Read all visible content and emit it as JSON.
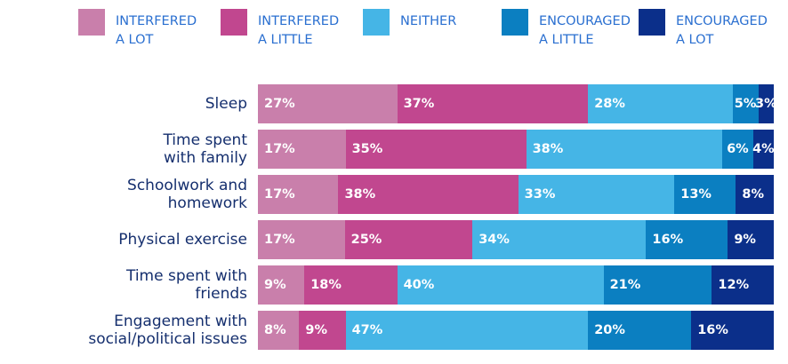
{
  "chart_data": {
    "type": "stacked-bar-horizontal",
    "categories": [
      "Sleep",
      "Time spent\nwith family",
      "Schoolwork and\nhomework",
      "Physical exercise",
      "Time spent with\nfriends",
      "Engagement with\nsocial/political issues"
    ],
    "series": [
      {
        "name": "INTERFERED\nA LOT",
        "color": "#c97fab",
        "values": [
          27,
          17,
          17,
          17,
          9,
          8
        ]
      },
      {
        "name": "INTERFERED\nA LITTLE",
        "color": "#c1478f",
        "values": [
          37,
          35,
          38,
          25,
          18,
          9
        ]
      },
      {
        "name": "NEITHER",
        "color": "#45b5e6",
        "values": [
          28,
          38,
          33,
          34,
          40,
          47
        ]
      },
      {
        "name": "ENCOURAGED\nA LITTLE",
        "color": "#0b7fc1",
        "values": [
          5,
          6,
          13,
          16,
          21,
          20
        ]
      },
      {
        "name": "ENCOURAGED\nA LOT",
        "color": "#0b2f8a",
        "values": [
          3,
          4,
          8,
          9,
          12,
          16
        ]
      }
    ],
    "value_labels": [
      [
        "27%",
        "17%",
        "17%",
        "17%",
        "9%",
        "8%"
      ],
      [
        "37%",
        "35%",
        "38%",
        "25%",
        "18%",
        "9%"
      ],
      [
        "28%",
        "38%",
        "33%",
        "34%",
        "40%",
        "47%"
      ],
      [
        "5%",
        "6%",
        "13%",
        "16%",
        "21%",
        "20%"
      ],
      [
        "3%",
        "4%",
        "8%",
        "9%",
        "12%",
        "16%"
      ]
    ]
  }
}
